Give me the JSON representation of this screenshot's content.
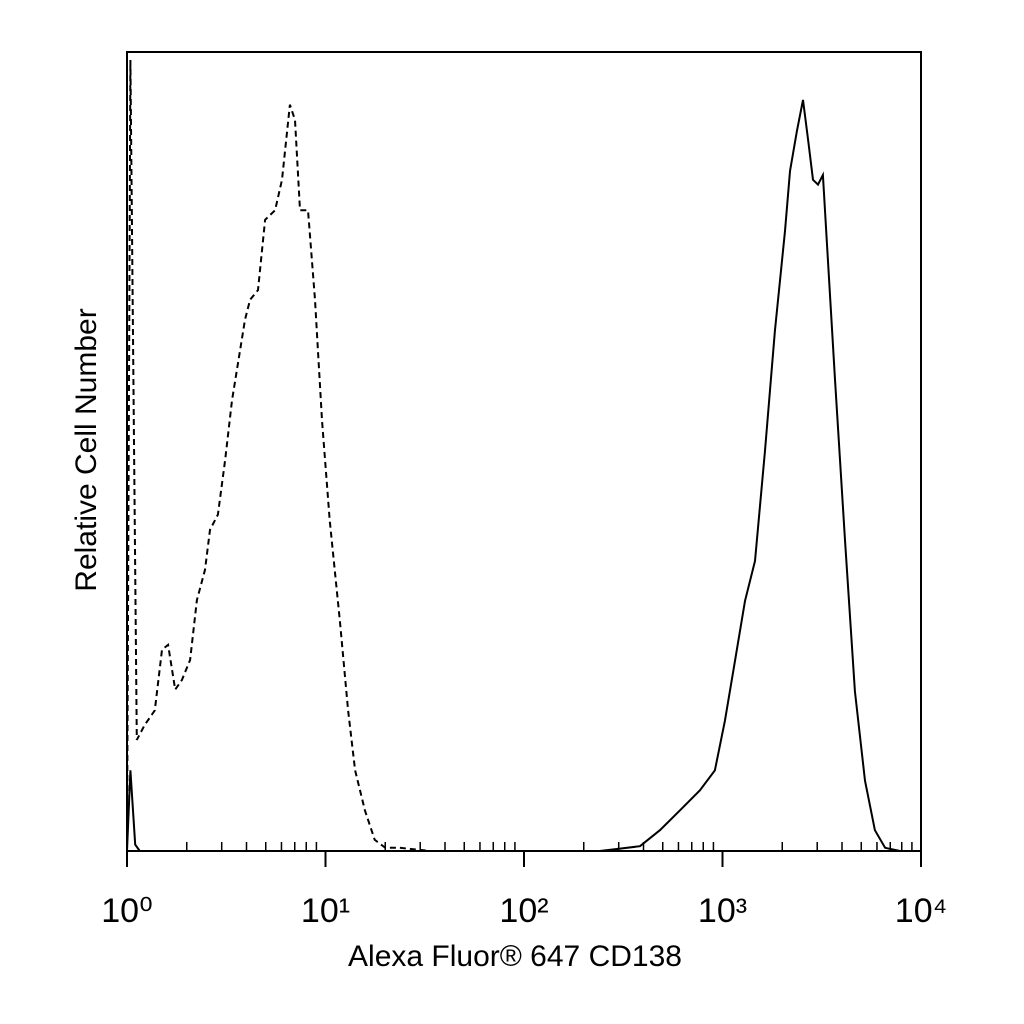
{
  "chart_data": {
    "type": "line",
    "x_label": "Alexa Fluor® 647 CD138",
    "y_label": "Relative Cell Number",
    "x_scale": "log",
    "xlim": [
      1,
      10000
    ],
    "ylim": [
      0,
      100
    ],
    "xticks": [
      {
        "value": 1,
        "label": "10⁰"
      },
      {
        "value": 10,
        "label": "10¹"
      },
      {
        "value": 100,
        "label": "10²"
      },
      {
        "value": 1000,
        "label": "10³"
      },
      {
        "value": 10000,
        "label": "10⁴"
      }
    ],
    "xminorticks": [
      2,
      3,
      4,
      5,
      6,
      7,
      8,
      9,
      20,
      30,
      40,
      50,
      60,
      70,
      80,
      90,
      200,
      300,
      400,
      500,
      600,
      700,
      800,
      900,
      2000,
      3000,
      4000,
      5000,
      6000,
      7000,
      8000,
      9000
    ],
    "series": [
      {
        "color": "#000000",
        "style": "dashed",
        "x": [
          1,
          1.04,
          1.12,
          1.23,
          1.38,
          1.5,
          1.61,
          1.75,
          1.89,
          2.08,
          2.25,
          2.47,
          2.62,
          2.87,
          3.12,
          3.38,
          3.58,
          3.93,
          4.17,
          4.57,
          4.96,
          5.57,
          6.04,
          6.62,
          7.02,
          7.44,
          8.16,
          8.85,
          9.6,
          10.5,
          11.8,
          13,
          14.1,
          15.8,
          17.7,
          20,
          23.7,
          33.6,
          10000
        ],
        "values": [
          0,
          99,
          13.9,
          15.8,
          17.6,
          25.2,
          25.8,
          20.2,
          21.4,
          23.9,
          31.4,
          35.2,
          40.2,
          42.1,
          48.9,
          56.4,
          60.2,
          66.5,
          69,
          70.2,
          79,
          80.2,
          84,
          93.4,
          91.5,
          80.2,
          80.2,
          69,
          53.9,
          41.4,
          28.9,
          17.6,
          10.1,
          5.1,
          1.4,
          0.4,
          0.4,
          0,
          0
        ]
      },
      {
        "color": "#000000",
        "style": "solid",
        "x": [
          1,
          1.04,
          1.1,
          1.16,
          241,
          305,
          384,
          484,
          611,
          769,
          916,
          1028,
          1156,
          1298,
          1458,
          1637,
          1837,
          2065,
          2188,
          2371,
          2545,
          2698,
          2858,
          3027,
          3206,
          3396,
          3687,
          4140,
          4645,
          5224,
          5861,
          6592,
          7834,
          10000
        ],
        "values": [
          0,
          10.1,
          0.8,
          0,
          0,
          0.3,
          0.6,
          2.6,
          5.1,
          7.6,
          10.1,
          16.3,
          23.8,
          31.3,
          36.3,
          50.1,
          65.1,
          77.6,
          85.1,
          90.1,
          94,
          89,
          84,
          83.4,
          84.6,
          74,
          59,
          38.9,
          20,
          8.8,
          2.6,
          0.4,
          0,
          0
        ]
      }
    ]
  }
}
